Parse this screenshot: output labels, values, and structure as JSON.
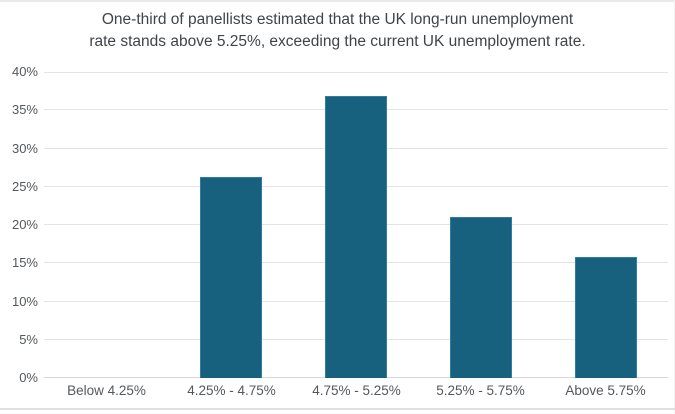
{
  "title": {
    "line1": "One-third of panellists estimated that the UK long-run unemployment",
    "line2": "rate stands above 5.25%, exceeding the current UK unemployment rate."
  },
  "chart_data": {
    "type": "bar",
    "title": "One-third of panellists estimated that the UK long-run unemployment rate stands above 5.25%, exceeding the current UK unemployment rate.",
    "categories": [
      "Below 4.25%",
      "4.25% - 4.75%",
      "4.75% - 5.25%",
      "5.25% - 5.75%",
      "Above 5.75%"
    ],
    "values": [
      0,
      26.3,
      36.8,
      21.1,
      15.8
    ],
    "xlabel": "",
    "ylabel": "",
    "ylim": [
      0,
      40
    ],
    "ytick_step": 5,
    "ytick_suffix": "%",
    "grid": true,
    "legend": "none",
    "colors": {
      "bar_fill": "#17617f",
      "bar_border": "#2e7da4",
      "gridline": "#e4e4e4",
      "axis_line": "#d7d7d7",
      "title_text": "#3f4449",
      "axis_text": "#54585c",
      "frame_border": "#e5e5e5"
    }
  }
}
